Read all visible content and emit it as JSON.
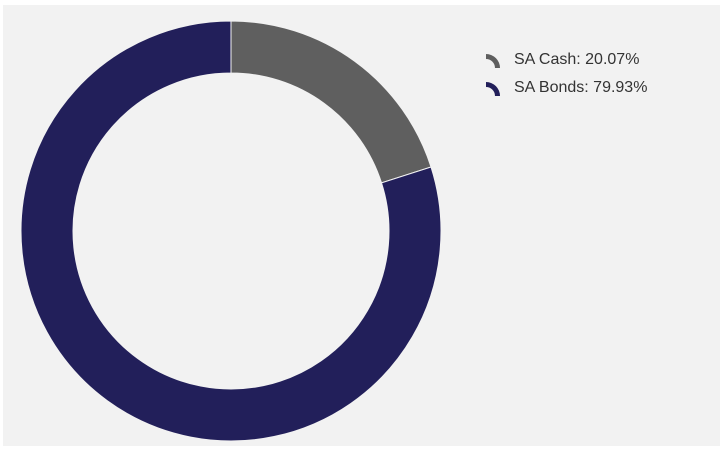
{
  "chart_data": {
    "type": "pie",
    "variant": "donut",
    "title": "",
    "series": [
      {
        "name": "SA Cash",
        "value": 20.07,
        "color": "#5f5f5f"
      },
      {
        "name": "SA Bonds",
        "value": 79.93,
        "color": "#221f5a"
      }
    ],
    "legend_position": "top-right",
    "legend": [
      {
        "label": "SA Cash: 20.07%",
        "color": "#5f5f5f",
        "icon": "donut-segment-icon"
      },
      {
        "label": "SA Bonds: 79.93%",
        "color": "#221f5a",
        "icon": "donut-segment-icon"
      }
    ]
  },
  "colors": {
    "background": "#f2f2f2",
    "page": "#ffffff"
  }
}
